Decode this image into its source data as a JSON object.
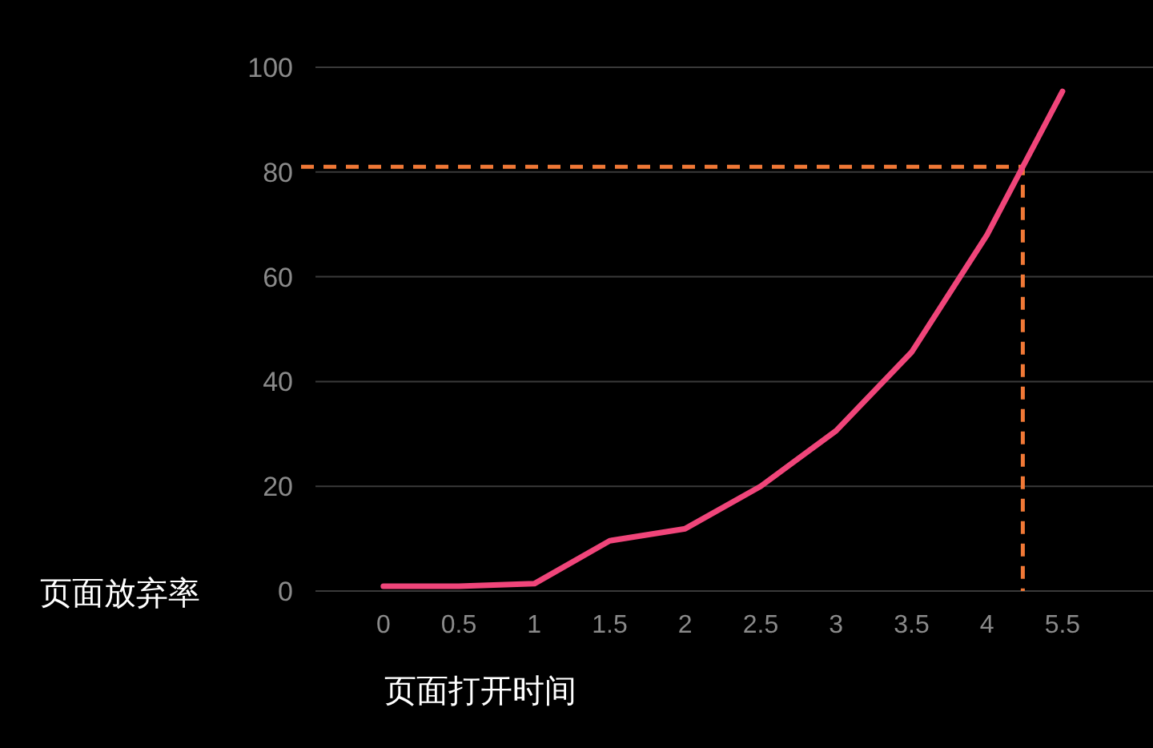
{
  "chart_data": {
    "type": "line",
    "xlabel": "页面打开时间",
    "ylabel": "页面放弃率",
    "categories": [
      "0",
      "0.5",
      "1",
      "1.5",
      "2",
      "2.5",
      "3",
      "3.5",
      "4",
      "5.5"
    ],
    "series": [
      {
        "color": "#f0457a",
        "values": [
          0.9,
          0.9,
          1.4,
          9.6,
          11.9,
          20,
          30.6,
          45.6,
          68,
          95.4
        ]
      }
    ],
    "ylim": [
      0,
      100
    ],
    "yticks": [
      0,
      20,
      40,
      60,
      80,
      100
    ],
    "grid": "y",
    "ref_lines": [
      {
        "axis": "y",
        "value": 81,
        "color": "#f07836",
        "line_style": "dashed"
      }
    ]
  }
}
